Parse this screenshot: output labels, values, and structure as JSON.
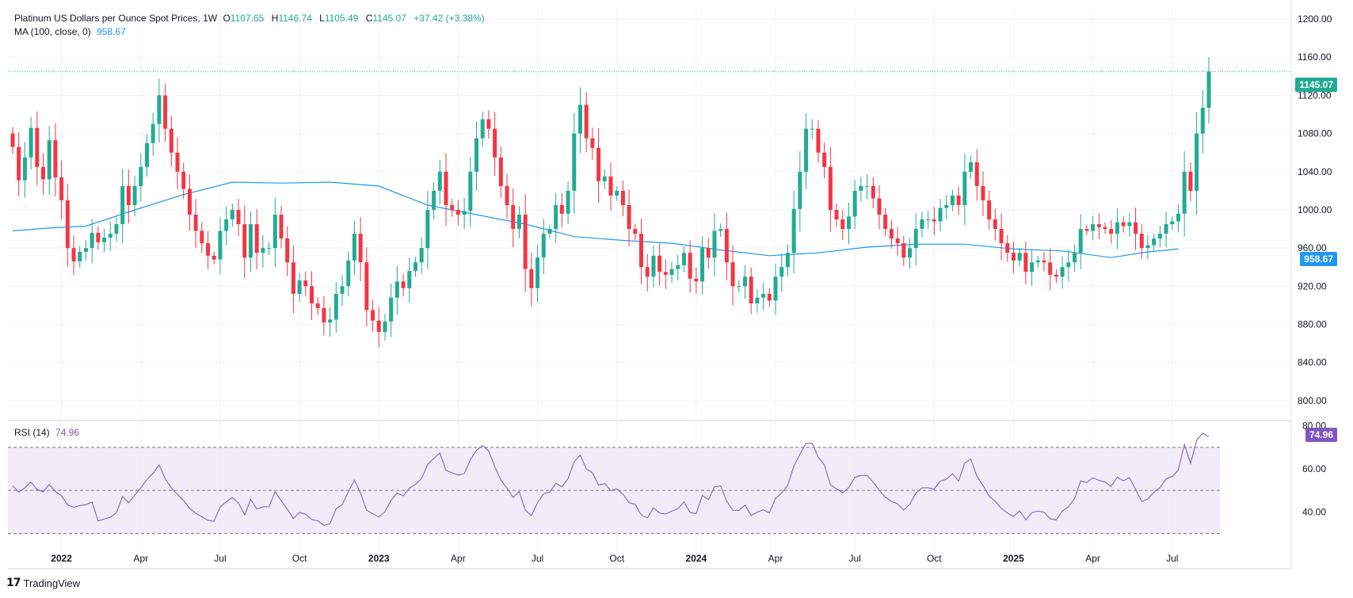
{
  "header": {
    "title": "Platinum US Dollars per Ounce Spot Prices, 1W",
    "o_label": "O",
    "o": "1107.65",
    "h_label": "H",
    "h": "1146.74",
    "l_label": "L",
    "l": "1105.49",
    "c_label": "C",
    "c": "1145.07",
    "change": "+37.42 (+3.38%)",
    "ma_label": "MA (100, close, 0)",
    "ma_value": "958.67",
    "rsi_label": "RSI (14)",
    "rsi_value": "74.96"
  },
  "tags": {
    "last_price": "1145.07",
    "ma_price": "958.67",
    "rsi": "74.96"
  },
  "brand": {
    "name": "TradingView"
  },
  "colors": {
    "up": "#22ab94",
    "down": "#f23645",
    "ma": "#2196f3",
    "rsi": "#7e57c2",
    "rsi_band": "#ede7f6"
  },
  "chart_data": [
    {
      "type": "candlestick",
      "title": "Platinum US Dollars per Ounce Spot Prices, 1W",
      "ylim": [
        780,
        1210
      ],
      "y_ticks": [
        "1200.00",
        "1160.00",
        "1120.00",
        "1080.00",
        "1040.00",
        "1000.00",
        "960.00",
        "920.00",
        "880.00",
        "840.00",
        "800.00"
      ],
      "x_ticks": [
        "2022",
        "Apr",
        "Jul",
        "Oct",
        "2023",
        "Apr",
        "Jul",
        "Oct",
        "2024",
        "Apr",
        "Jul",
        "Oct",
        "2025",
        "Apr",
        "Jul"
      ],
      "x_tick_weeks": [
        8,
        21,
        34,
        47,
        60,
        73,
        86,
        99,
        112,
        125,
        138,
        151,
        164,
        177,
        190
      ],
      "last_price_line": 1145.07,
      "close": [
        1066,
        1031,
        1055,
        1086,
        1045,
        1032,
        1073,
        1034,
        1010,
        960,
        946,
        956,
        960,
        976,
        966,
        971,
        975,
        985,
        1025,
        1005,
        1025,
        1045,
        1070,
        1090,
        1120,
        1085,
        1060,
        1040,
        1022,
        995,
        978,
        965,
        952,
        948,
        978,
        990,
        1000,
        985,
        950,
        985,
        955,
        960,
        960,
        995,
        970,
        945,
        912,
        926,
        920,
        902,
        897,
        882,
        885,
        912,
        920,
        947,
        975,
        945,
        895,
        884,
        872,
        883,
        908,
        925,
        918,
        936,
        945,
        960,
        1000,
        1020,
        1040,
        1005,
        1000,
        995,
        999,
        1040,
        1075,
        1095,
        1085,
        1055,
        1025,
        1005,
        980,
        995,
        938,
        918,
        950,
        975,
        980,
        1005,
        996,
        1020,
        1080,
        1110,
        1075,
        1065,
        1030,
        1035,
        1015,
        1020,
        1005,
        980,
        975,
        940,
        930,
        952,
        935,
        932,
        938,
        942,
        955,
        928,
        925,
        960,
        950,
        978,
        980,
        945,
        920,
        920,
        930,
        902,
        908,
        912,
        905,
        930,
        940,
        955,
        1001,
        1040,
        1085,
        1085,
        1060,
        1045,
        1000,
        990,
        980,
        993,
        1020,
        1025,
        1025,
        1012,
        995,
        980,
        970,
        965,
        950,
        960,
        980,
        990,
        990,
        988,
        1002,
        1005,
        1015,
        1005,
        1040,
        1050,
        1025,
        1010,
        990,
        980,
        965,
        955,
        947,
        955,
        935,
        945,
        947,
        945,
        932,
        930,
        940,
        945,
        955,
        980,
        978,
        985,
        982,
        980,
        975,
        987,
        983,
        987,
        975,
        960,
        963,
        970,
        975,
        985,
        988,
        996,
        1040,
        1020,
        1080,
        1107,
        1145
      ],
      "ma": {
        "name": "MA (100, close, 0)",
        "points": [
          [
            0,
            978
          ],
          [
            6,
            981
          ],
          [
            12,
            983
          ],
          [
            20,
            1000
          ],
          [
            28,
            1016
          ],
          [
            36,
            1029
          ],
          [
            44,
            1028
          ],
          [
            52,
            1029
          ],
          [
            60,
            1025
          ],
          [
            68,
            1005
          ],
          [
            76,
            995
          ],
          [
            84,
            985
          ],
          [
            92,
            972
          ],
          [
            100,
            968
          ],
          [
            108,
            965
          ],
          [
            116,
            958
          ],
          [
            124,
            952
          ],
          [
            132,
            955
          ],
          [
            140,
            961
          ],
          [
            148,
            964
          ],
          [
            156,
            964
          ],
          [
            164,
            959
          ],
          [
            172,
            957
          ],
          [
            180,
            950
          ],
          [
            186,
            956
          ],
          [
            191,
            959
          ]
        ],
        "last": 958.67
      }
    },
    {
      "type": "line",
      "title": "RSI (14)",
      "ylim": [
        24,
        82
      ],
      "y_ticks": [
        "80.00",
        "60.00",
        "40.00"
      ],
      "bands": [
        70,
        50,
        30
      ],
      "last": 74.96
    }
  ]
}
